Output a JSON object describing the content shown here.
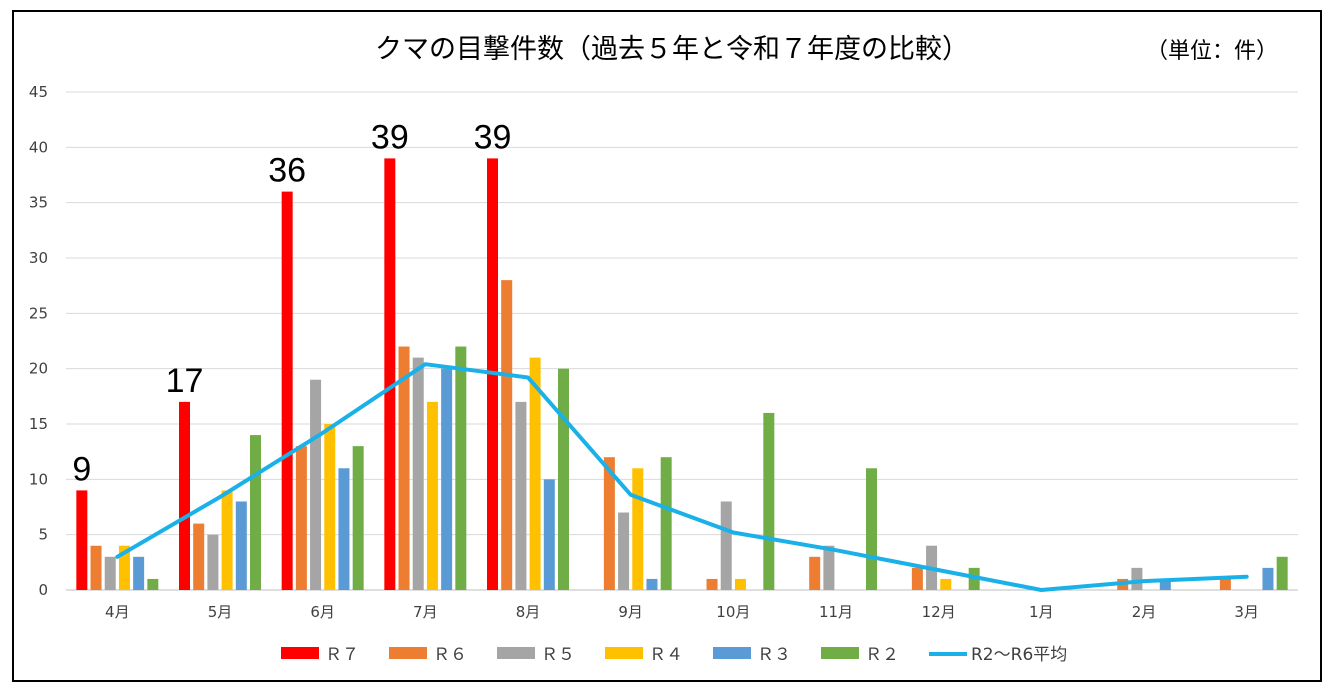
{
  "chart_data": {
    "type": "bar",
    "title": "クマの目撃件数（過去５年と令和７年度の比較）",
    "unit_note": "（単位：件）",
    "categories": [
      "4月",
      "5月",
      "6月",
      "7月",
      "8月",
      "9月",
      "10月",
      "11月",
      "12月",
      "1月",
      "2月",
      "3月"
    ],
    "ylim": [
      0,
      45
    ],
    "yticks": [
      0,
      5,
      10,
      15,
      20,
      25,
      30,
      35,
      40,
      45
    ],
    "grid": true,
    "legend_position": "bottom",
    "series": [
      {
        "name": "Ｒ７",
        "color": "#ff0000",
        "values": [
          9,
          17,
          36,
          39,
          39,
          null,
          null,
          null,
          null,
          null,
          null,
          null
        ],
        "data_labels": true
      },
      {
        "name": "Ｒ６",
        "color": "#ed7d31",
        "values": [
          4,
          6,
          13,
          22,
          28,
          12,
          1,
          3,
          2,
          0,
          1,
          1
        ]
      },
      {
        "name": "Ｒ５",
        "color": "#a5a5a5",
        "values": [
          3,
          5,
          19,
          21,
          17,
          7,
          8,
          4,
          4,
          0,
          2,
          0
        ]
      },
      {
        "name": "Ｒ４",
        "color": "#ffc000",
        "values": [
          4,
          9,
          15,
          17,
          21,
          11,
          1,
          0,
          1,
          0,
          0,
          0
        ]
      },
      {
        "name": "Ｒ３",
        "color": "#5b9bd5",
        "values": [
          3,
          8,
          11,
          20,
          10,
          1,
          0,
          0,
          0,
          0,
          1,
          2
        ]
      },
      {
        "name": "Ｒ２",
        "color": "#70ad47",
        "values": [
          1,
          14,
          13,
          22,
          20,
          12,
          16,
          11,
          2,
          0,
          0,
          3
        ]
      },
      {
        "name": "R2～R6平均",
        "type": "line",
        "color": "#1ab0e8",
        "values": [
          3.0,
          8.4,
          14.2,
          20.4,
          19.2,
          8.6,
          5.2,
          3.6,
          1.8,
          0.0,
          0.8,
          1.2
        ]
      }
    ]
  }
}
